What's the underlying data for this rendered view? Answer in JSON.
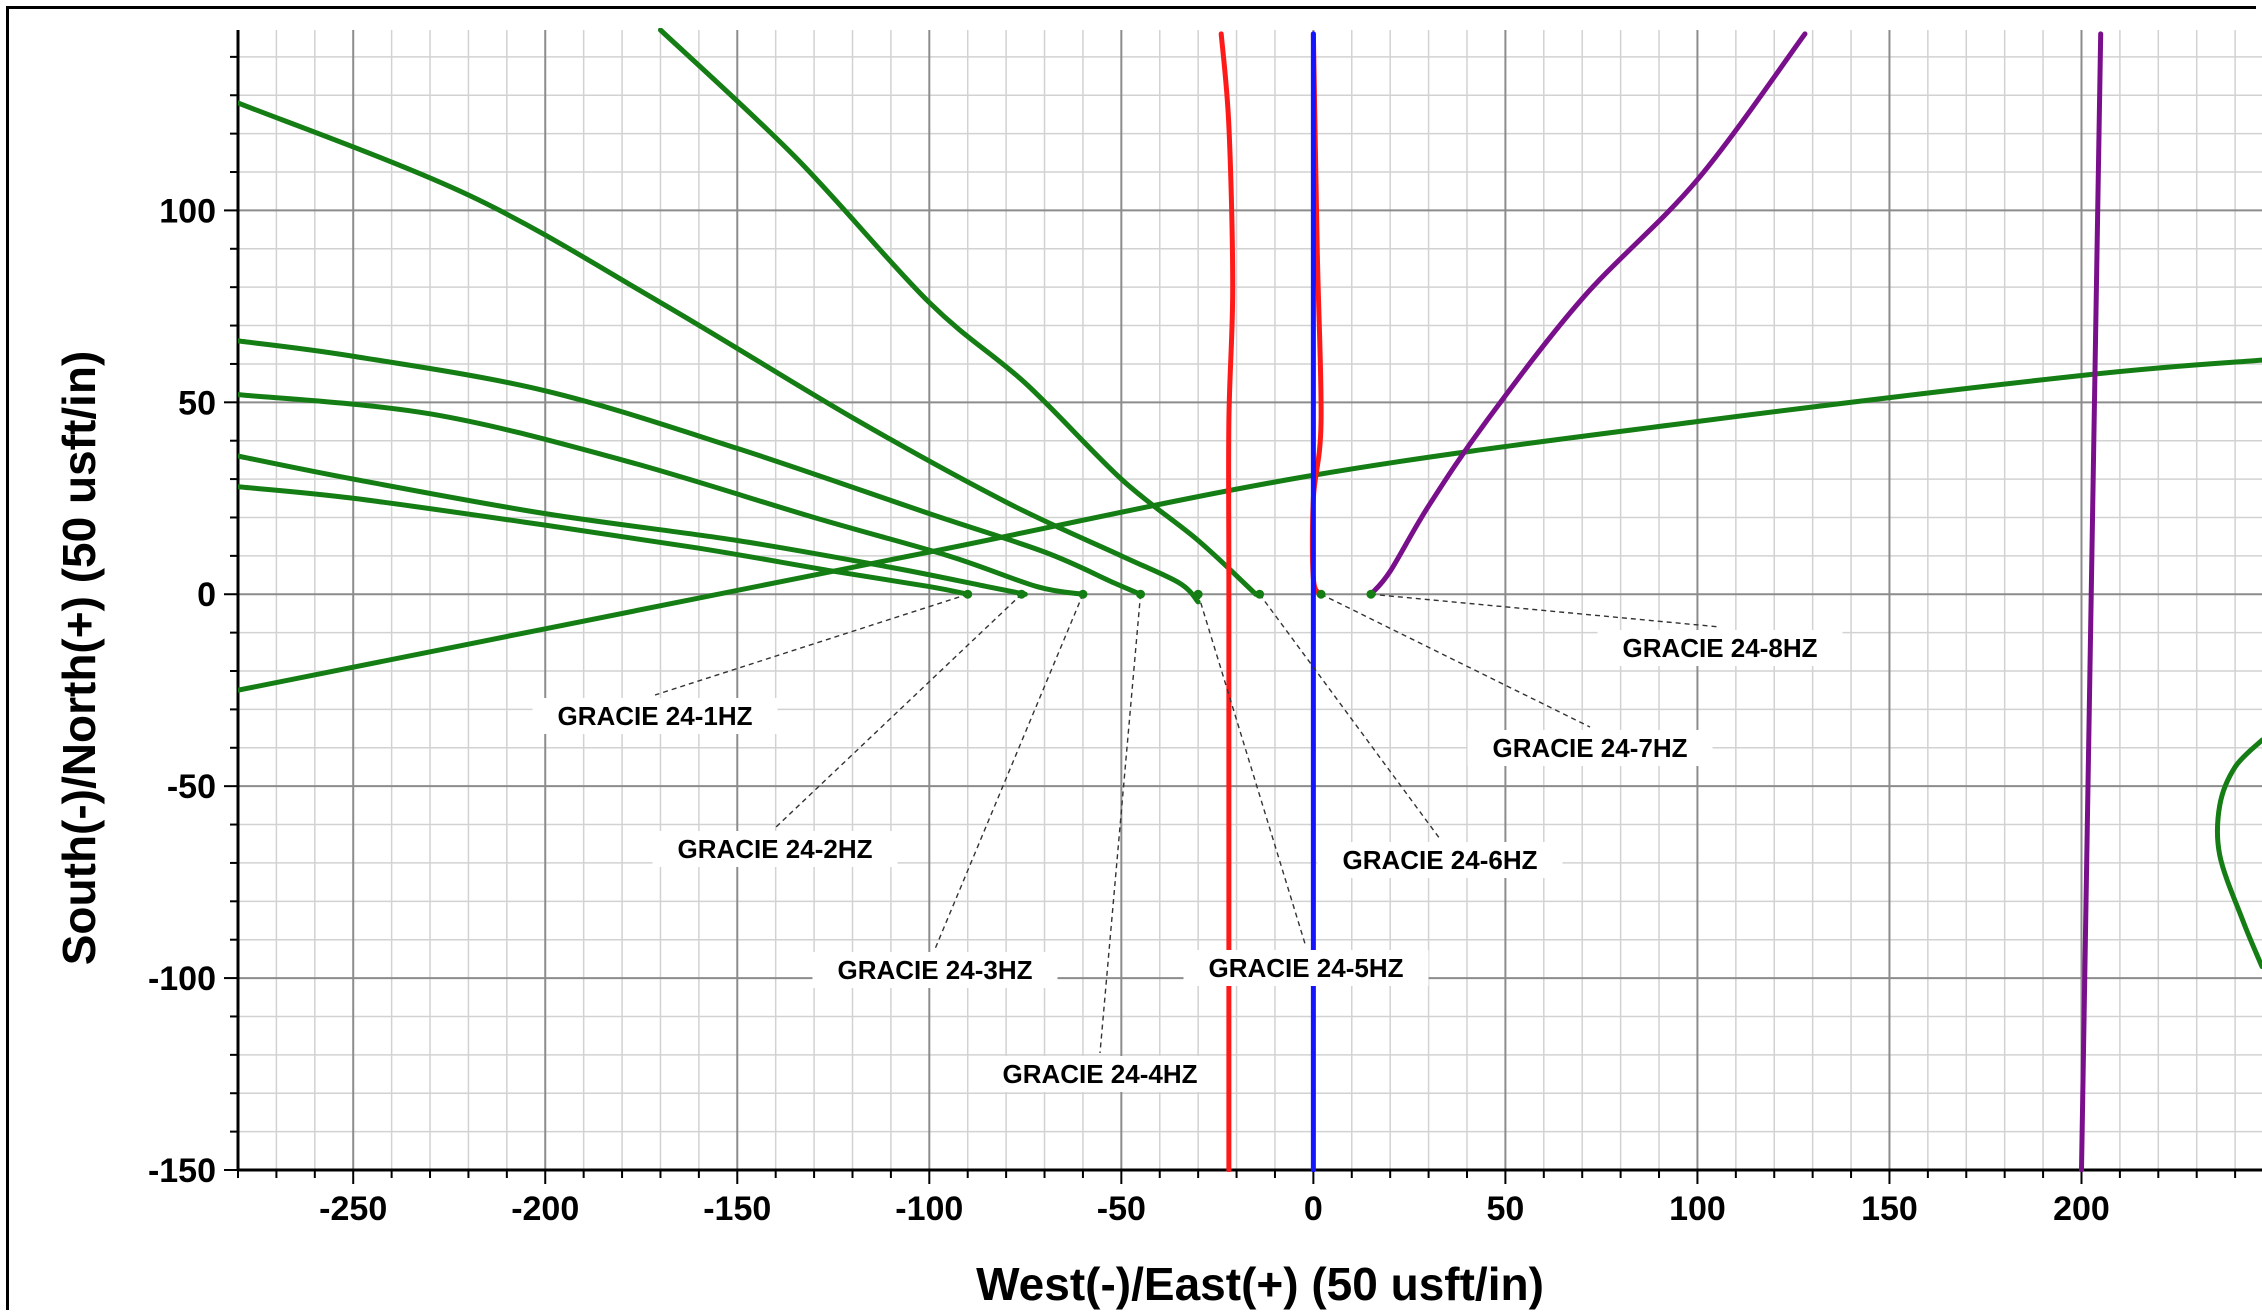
{
  "chart_data": {
    "type": "line",
    "xlabel": "West(-)/East(+) (50 usft/in)",
    "ylabel": "South(-)/North(+) (50 usft/in)",
    "xlim": [
      -280,
      247
    ],
    "ylim": [
      -150,
      147
    ],
    "grid": true,
    "x_ticks": [
      -250,
      -200,
      -150,
      -100,
      -50,
      0,
      50,
      100,
      150,
      200
    ],
    "y_ticks": [
      100,
      50,
      0,
      -50,
      -100,
      -150
    ],
    "colors": {
      "green": "#147d14",
      "red": "#ff1a1a",
      "blue": "#1414ff",
      "purple": "#7a0f8c"
    },
    "series": [
      {
        "color": "green",
        "points": [
          [
            -90,
            0
          ],
          [
            -100,
            2
          ],
          [
            -125,
            6
          ],
          [
            -160,
            12
          ],
          [
            -200,
            18
          ],
          [
            -250,
            25
          ],
          [
            -280,
            28
          ]
        ]
      },
      {
        "color": "green",
        "points": [
          [
            -75,
            0
          ],
          [
            -85,
            2
          ],
          [
            -110,
            7
          ],
          [
            -150,
            14
          ],
          [
            -200,
            21
          ],
          [
            -250,
            30
          ],
          [
            -280,
            36
          ]
        ]
      },
      {
        "color": "green",
        "points": [
          [
            -60,
            0
          ],
          [
            -72,
            2
          ],
          [
            -95,
            10
          ],
          [
            -130,
            20
          ],
          [
            -180,
            35
          ],
          [
            -230,
            47
          ],
          [
            -280,
            52
          ]
        ]
      },
      {
        "color": "green",
        "points": [
          [
            -45,
            0
          ],
          [
            -52,
            3
          ],
          [
            -70,
            11
          ],
          [
            -100,
            21
          ],
          [
            -150,
            38
          ],
          [
            -200,
            53
          ],
          [
            -250,
            62
          ],
          [
            -280,
            66
          ]
        ]
      },
      {
        "color": "green",
        "points": [
          [
            -30,
            -2
          ],
          [
            -35,
            3
          ],
          [
            -50,
            10
          ],
          [
            -80,
            24
          ],
          [
            -120,
            46
          ],
          [
            -170,
            76
          ],
          [
            -220,
            104
          ],
          [
            -280,
            128
          ]
        ]
      },
      {
        "color": "green",
        "points": [
          [
            -15,
            0
          ],
          [
            -30,
            14
          ],
          [
            -50,
            30
          ],
          [
            -75,
            55
          ],
          [
            -100,
            76
          ],
          [
            -135,
            114
          ],
          [
            -170,
            147
          ]
        ]
      },
      {
        "color": "green",
        "points": [
          [
            -280,
            -25
          ],
          [
            -200,
            -9
          ],
          [
            -100,
            11
          ],
          [
            0,
            31
          ],
          [
            100,
            45
          ],
          [
            200,
            57
          ],
          [
            247,
            61
          ]
        ]
      },
      {
        "color": "green",
        "points": [
          [
            247,
            -38
          ],
          [
            240,
            -45
          ],
          [
            236,
            -55
          ],
          [
            236,
            -68
          ],
          [
            242,
            -85
          ],
          [
            247,
            -97
          ]
        ]
      },
      {
        "color": "red",
        "points": [
          [
            -22,
            -150
          ],
          [
            -22,
            -100
          ],
          [
            -22,
            0
          ],
          [
            -22,
            45
          ],
          [
            -21,
            80
          ],
          [
            -22,
            122
          ],
          [
            -24,
            146
          ]
        ]
      },
      {
        "color": "red",
        "points": [
          [
            2,
            0
          ],
          [
            0,
            4
          ],
          [
            0,
            25
          ],
          [
            2,
            45
          ],
          [
            1,
            90
          ],
          [
            0,
            146
          ]
        ]
      },
      {
        "color": "blue",
        "points": [
          [
            0,
            -150
          ],
          [
            0,
            146
          ]
        ]
      },
      {
        "color": "purple",
        "points": [
          [
            15,
            0
          ],
          [
            20,
            6
          ],
          [
            30,
            23
          ],
          [
            45,
            45
          ],
          [
            70,
            77
          ],
          [
            100,
            108
          ],
          [
            128,
            146
          ]
        ]
      },
      {
        "color": "purple",
        "points": [
          [
            200,
            -150
          ],
          [
            205,
            146
          ]
        ]
      }
    ],
    "annotations": [
      {
        "label": "GRACIE 24-1HZ",
        "anchor": [
          -90,
          0
        ]
      },
      {
        "label": "GRACIE 24-2HZ",
        "anchor": [
          -76,
          0
        ]
      },
      {
        "label": "GRACIE 24-3HZ",
        "anchor": [
          -60,
          0
        ]
      },
      {
        "label": "GRACIE 24-4HZ",
        "anchor": [
          -45,
          0
        ]
      },
      {
        "label": "GRACIE 24-5HZ",
        "anchor": [
          -30,
          0
        ]
      },
      {
        "label": "GRACIE 24-6HZ",
        "anchor": [
          -14,
          0
        ]
      },
      {
        "label": "GRACIE 24-7HZ",
        "anchor": [
          2,
          0
        ]
      },
      {
        "label": "GRACIE 24-8HZ",
        "anchor": [
          15,
          0
        ]
      }
    ]
  }
}
